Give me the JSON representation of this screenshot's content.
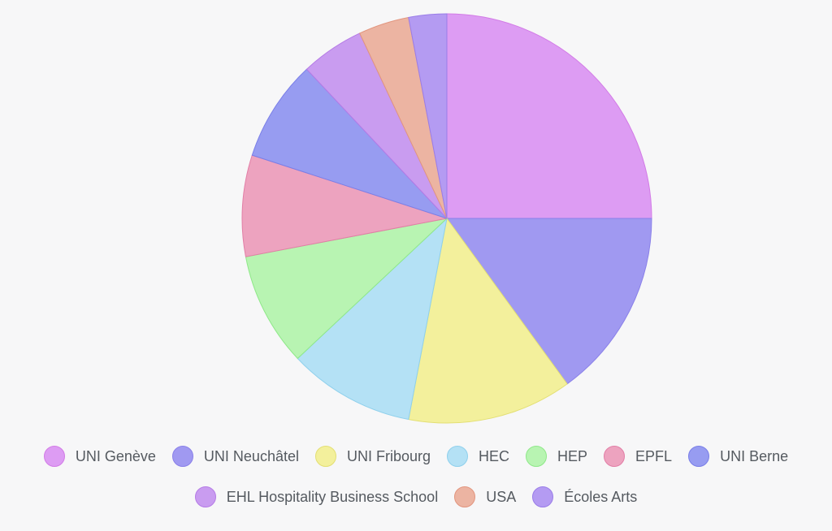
{
  "chart_data": {
    "type": "pie",
    "start_angle_deg": -90,
    "direction": "clockwise",
    "slices": [
      {
        "label": "UNI Genève",
        "value": 25.0,
        "color": "#dd9cf3",
        "border": "#d27be6"
      },
      {
        "label": "UNI Neuchâtel",
        "value": 15.0,
        "color": "#a099f1",
        "border": "#8a80e9"
      },
      {
        "label": "UNI Fribourg",
        "value": 13.0,
        "color": "#f3f09c",
        "border": "#e3df73"
      },
      {
        "label": "HEC",
        "value": 10.0,
        "color": "#b4e1f5",
        "border": "#8fd0ec"
      },
      {
        "label": "HEP",
        "value": 9.0,
        "color": "#b8f4b2",
        "border": "#8fe889"
      },
      {
        "label": "EPFL",
        "value": 8.0,
        "color": "#eda3bf",
        "border": "#e27ea6"
      },
      {
        "label": "UNI Berne",
        "value": 8.0,
        "color": "#979cf1",
        "border": "#7a7fe8"
      },
      {
        "label": "EHL Hospitality Business School",
        "value": 5.0,
        "color": "#c99cf0",
        "border": "#b57be6"
      },
      {
        "label": "USA",
        "value": 4.0,
        "color": "#ecb4a2",
        "border": "#e2957e"
      },
      {
        "label": "Écoles Arts",
        "value": 3.0,
        "color": "#b49bf2",
        "border": "#9a7de8"
      }
    ],
    "legend_position": "bottom"
  }
}
